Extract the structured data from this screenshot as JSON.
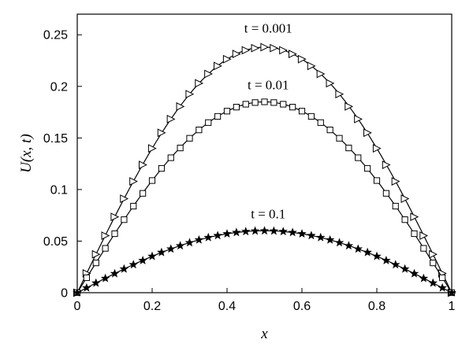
{
  "chart_data": {
    "type": "line",
    "xlabel": "x",
    "ylabel": "U(x, t)",
    "xlim": [
      0,
      1
    ],
    "ylim": [
      0,
      0.27
    ],
    "grid": false,
    "x_ticks": [
      {
        "value": 0,
        "label": "0"
      },
      {
        "value": 0.2,
        "label": "0.2"
      },
      {
        "value": 0.4,
        "label": "0.4"
      },
      {
        "value": 0.6,
        "label": "0.6"
      },
      {
        "value": 0.8,
        "label": "0.8"
      },
      {
        "value": 1,
        "label": "1"
      }
    ],
    "y_ticks": [
      {
        "value": 0,
        "label": "0"
      },
      {
        "value": 0.05,
        "label": "0.05"
      },
      {
        "value": 0.1,
        "label": "0.1"
      },
      {
        "value": 0.15,
        "label": "0.15"
      },
      {
        "value": 0.2,
        "label": "0.2"
      },
      {
        "value": 0.25,
        "label": "0.25"
      }
    ],
    "series": [
      {
        "name": "t = 0.001",
        "marker": "triangle-right",
        "peak": 0.238,
        "label_x": 0.51,
        "label_y": 0.252,
        "x": [
          0,
          0.025,
          0.05,
          0.075,
          0.1,
          0.125,
          0.15,
          0.175,
          0.2,
          0.225,
          0.25,
          0.275,
          0.3,
          0.325,
          0.35,
          0.375,
          0.4,
          0.425,
          0.45,
          0.475,
          0.5,
          0.525,
          0.55,
          0.575,
          0.6,
          0.625,
          0.65,
          0.675,
          0.7,
          0.725,
          0.75,
          0.775,
          0.8,
          0.825,
          0.85,
          0.875,
          0.9,
          0.925,
          0.95,
          0.975,
          1
        ],
        "y": [
          0,
          0.0187,
          0.0372,
          0.0553,
          0.0735,
          0.0911,
          0.1079,
          0.1239,
          0.1399,
          0.155,
          0.1683,
          0.1805,
          0.1925,
          0.203,
          0.2121,
          0.2198,
          0.2264,
          0.2314,
          0.235,
          0.2371,
          0.238,
          0.2371,
          0.235,
          0.2314,
          0.2264,
          0.2198,
          0.2121,
          0.203,
          0.1925,
          0.1805,
          0.1683,
          0.155,
          0.1399,
          0.1239,
          0.1079,
          0.0911,
          0.0735,
          0.0553,
          0.0372,
          0.0187,
          0
        ]
      },
      {
        "name": "t = 0.01",
        "marker": "square",
        "peak": 0.185,
        "label_x": 0.51,
        "label_y": 0.197,
        "x": [
          0,
          0.025,
          0.05,
          0.075,
          0.1,
          0.125,
          0.15,
          0.175,
          0.2,
          0.225,
          0.25,
          0.275,
          0.3,
          0.325,
          0.35,
          0.375,
          0.4,
          0.425,
          0.45,
          0.475,
          0.5,
          0.525,
          0.55,
          0.575,
          0.6,
          0.625,
          0.65,
          0.675,
          0.7,
          0.725,
          0.75,
          0.775,
          0.8,
          0.825,
          0.85,
          0.875,
          0.9,
          0.925,
          0.95,
          0.975,
          1
        ],
        "y": [
          0,
          0.0145,
          0.0289,
          0.043,
          0.0572,
          0.0708,
          0.0839,
          0.0963,
          0.1087,
          0.1205,
          0.1308,
          0.1403,
          0.1497,
          0.1578,
          0.1649,
          0.1709,
          0.176,
          0.1799,
          0.1827,
          0.1843,
          0.185,
          0.1843,
          0.1827,
          0.1799,
          0.176,
          0.1709,
          0.1649,
          0.1578,
          0.1497,
          0.1403,
          0.1308,
          0.1205,
          0.1087,
          0.0963,
          0.0839,
          0.0708,
          0.0572,
          0.043,
          0.0289,
          0.0145,
          0
        ]
      },
      {
        "name": "t = 0.1",
        "marker": "star",
        "peak": 0.06,
        "label_x": 0.51,
        "label_y": 0.072,
        "x": [
          0,
          0.025,
          0.05,
          0.075,
          0.1,
          0.125,
          0.15,
          0.175,
          0.2,
          0.225,
          0.25,
          0.275,
          0.3,
          0.325,
          0.35,
          0.375,
          0.4,
          0.425,
          0.45,
          0.475,
          0.5,
          0.525,
          0.55,
          0.575,
          0.6,
          0.625,
          0.65,
          0.675,
          0.7,
          0.725,
          0.75,
          0.775,
          0.8,
          0.825,
          0.85,
          0.875,
          0.9,
          0.925,
          0.95,
          0.975,
          1
        ],
        "y": [
          0,
          0.0047,
          0.0094,
          0.0139,
          0.0185,
          0.023,
          0.0272,
          0.0312,
          0.0353,
          0.0391,
          0.0424,
          0.0455,
          0.0485,
          0.0512,
          0.0535,
          0.0554,
          0.0571,
          0.0584,
          0.0593,
          0.0598,
          0.06,
          0.0598,
          0.0593,
          0.0584,
          0.0571,
          0.0554,
          0.0535,
          0.0512,
          0.0485,
          0.0455,
          0.0424,
          0.0391,
          0.0353,
          0.0312,
          0.0272,
          0.023,
          0.0185,
          0.0139,
          0.0094,
          0.0047,
          0
        ]
      }
    ]
  }
}
